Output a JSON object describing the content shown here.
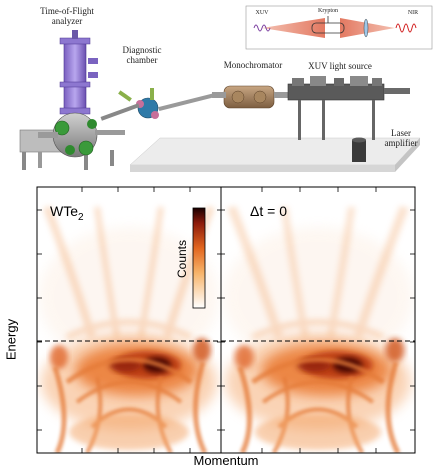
{
  "setup": {
    "tof_label_line1": "Time-of-Flight",
    "tof_label_line2": "analyzer",
    "diagnostic_label_line1": "Diagnostic",
    "diagnostic_label_line2": "chamber",
    "monochromator_label": "Monochromator",
    "xuv_source_label": "XUV light source",
    "laser_label_line1": "Laser",
    "laser_label_line2": "amplifier",
    "inset": {
      "xuv_label": "XUV",
      "krypton_label": "Krypton",
      "nir_label": "NIR"
    }
  },
  "panels": [
    {
      "label": "WTe",
      "label_sub": "2"
    },
    {
      "label": "Δt = 0",
      "label_sub": ""
    }
  ],
  "colorbar": {
    "label": "Counts"
  },
  "axes": {
    "xlabel": "Momentum",
    "ylabel": "Energy"
  },
  "chart_data": [
    {
      "type": "heatmap",
      "xlabel": "Momentum",
      "ylabel": "Energy",
      "tick_labels": "none",
      "colormap": "white-orange-red-black",
      "reference_line": "dashed horizontal",
      "panels": [
        "WTe2",
        "Δt = 0"
      ]
    }
  ]
}
